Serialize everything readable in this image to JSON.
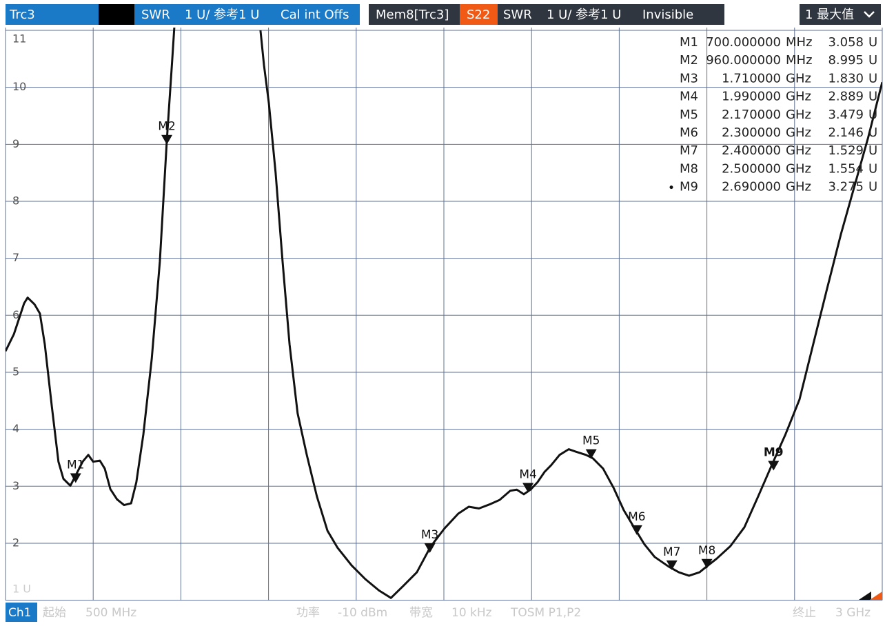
{
  "header": {
    "trace": "Trc3",
    "format": "SWR",
    "scale": "1 U/ 参考1 U",
    "cal": "Cal int Offs",
    "mem_trace": "Mem8[Trc3]",
    "mem_param": "S22",
    "mem_format": "SWR",
    "mem_scale": "1 U/ 参考1 U",
    "mem_state": "Invisible",
    "dropdown": "1 最大值"
  },
  "footer": {
    "channel": "Ch1",
    "start_label": "起始",
    "start": "500 MHz",
    "power_label": "功率",
    "power": "-10 dBm",
    "bw_label": "带宽",
    "bw": "10 kHz",
    "cal": "TOSM P1,P2",
    "stop_label": "终止",
    "stop": "3 GHz"
  },
  "chart_data": {
    "type": "line",
    "color": "#111111",
    "xlim": [
      500,
      3000
    ],
    "ylim": [
      1,
      11
    ],
    "yticks": [
      {
        "value": 1,
        "label": "1 U"
      },
      2,
      3,
      4,
      5,
      6,
      7,
      8,
      9,
      10,
      11
    ],
    "grid": true,
    "x": [
      500,
      524,
      553,
      563,
      583,
      598,
      612,
      632,
      651,
      665,
      685,
      700,
      720,
      736,
      750,
      769,
      783,
      799,
      818,
      838,
      858,
      873,
      893,
      917,
      940,
      960,
      975,
      987,
      1100,
      1227,
      1237,
      1251,
      1270,
      1290,
      1310,
      1333,
      1359,
      1388,
      1418,
      1447,
      1487,
      1526,
      1565,
      1599,
      1634,
      1673,
      1712,
      1752,
      1791,
      1821,
      1850,
      1880,
      1909,
      1939,
      1958,
      1978,
      1997,
      2017,
      2037,
      2056,
      2080,
      2106,
      2125,
      2155,
      2175,
      2204,
      2234,
      2263,
      2292,
      2322,
      2351,
      2391,
      2420,
      2449,
      2479,
      2499,
      2528,
      2567,
      2607,
      2646,
      2685,
      2724,
      2764,
      2803,
      2842,
      2882,
      2921,
      2960,
      3000
    ],
    "values": [
      5.37,
      5.67,
      6.21,
      6.31,
      6.19,
      6.03,
      5.49,
      4.4,
      3.43,
      3.13,
      3.01,
      3.19,
      3.43,
      3.55,
      3.43,
      3.45,
      3.31,
      2.95,
      2.77,
      2.67,
      2.7,
      3.07,
      3.91,
      5.24,
      6.94,
      9.06,
      10.45,
      11.6,
      null,
      11.0,
      10.39,
      9.72,
      8.51,
      6.94,
      5.49,
      4.28,
      3.55,
      2.82,
      2.22,
      1.92,
      1.61,
      1.37,
      1.17,
      1.04,
      1.25,
      1.49,
      1.94,
      2.26,
      2.52,
      2.64,
      2.61,
      2.68,
      2.76,
      2.92,
      2.94,
      2.86,
      2.94,
      3.07,
      3.25,
      3.37,
      3.55,
      3.65,
      3.61,
      3.55,
      3.49,
      3.31,
      2.97,
      2.58,
      2.28,
      1.98,
      1.76,
      1.59,
      1.49,
      1.43,
      1.49,
      1.59,
      1.73,
      1.95,
      2.28,
      2.82,
      3.37,
      3.91,
      4.52,
      5.49,
      6.45,
      7.42,
      8.27,
      9.12,
      10.09
    ],
    "markers": [
      {
        "name": "M1",
        "x": 700,
        "x_label": "700.000000",
        "x_unit": "MHz",
        "y": 3.058,
        "y_label": "3.058",
        "y_unit": "U"
      },
      {
        "name": "M2",
        "x": 960,
        "x_label": "960.000000",
        "x_unit": "MHz",
        "y": 8.995,
        "y_label": "8.995",
        "y_unit": "U"
      },
      {
        "name": "M3",
        "x": 1710,
        "x_label": "1.710000",
        "x_unit": "GHz",
        "y": 1.83,
        "y_label": "1.830",
        "y_unit": "U"
      },
      {
        "name": "M4",
        "x": 1990,
        "x_label": "1.990000",
        "x_unit": "GHz",
        "y": 2.889,
        "y_label": "2.889",
        "y_unit": "U"
      },
      {
        "name": "M5",
        "x": 2170,
        "x_label": "2.170000",
        "x_unit": "GHz",
        "y": 3.479,
        "y_label": "3.479",
        "y_unit": "U"
      },
      {
        "name": "M6",
        "x": 2300,
        "x_label": "2.300000",
        "x_unit": "GHz",
        "y": 2.146,
        "y_label": "2.146",
        "y_unit": "U"
      },
      {
        "name": "M7",
        "x": 2400,
        "x_label": "2.400000",
        "x_unit": "GHz",
        "y": 1.529,
        "y_label": "1.529",
        "y_unit": "U"
      },
      {
        "name": "M8",
        "x": 2500,
        "x_label": "2.500000",
        "x_unit": "GHz",
        "y": 1.554,
        "y_label": "1.554",
        "y_unit": "U"
      },
      {
        "name": "M9",
        "x": 2690,
        "x_label": "2.690000",
        "x_unit": "GHz",
        "y": 3.275,
        "y_label": "3.275",
        "y_unit": "U"
      }
    ]
  }
}
